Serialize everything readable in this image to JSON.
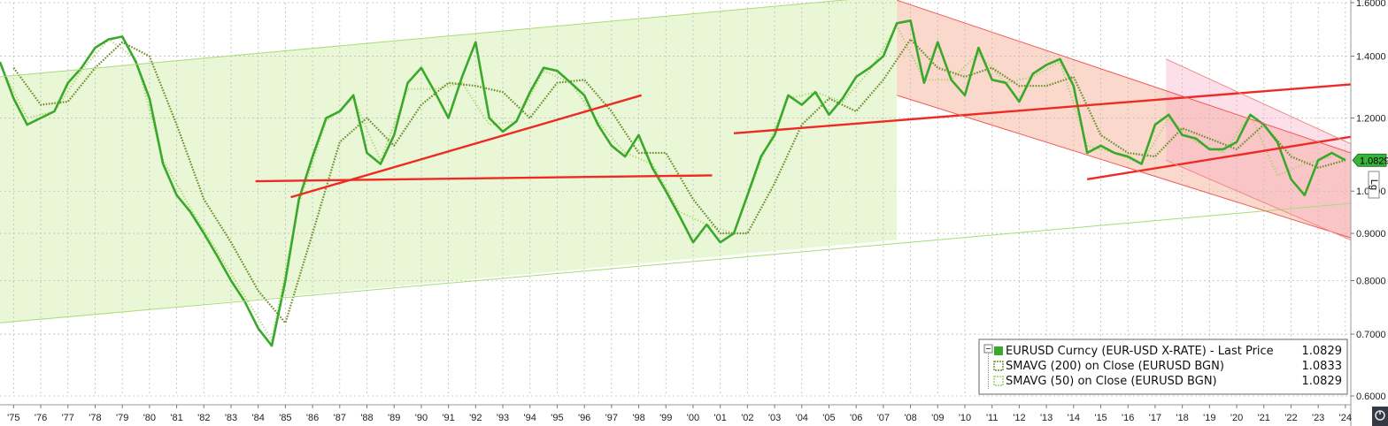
{
  "chart_data": {
    "type": "line",
    "title": "",
    "xlabel": "",
    "ylabel": "",
    "yscale": "log",
    "ylim": [
      0.6,
      1.6
    ],
    "xlim": [
      1975.0,
      2024.7
    ],
    "grid": true,
    "legend_position": "bottom-right",
    "x_tick_labels": [
      "'75",
      "'76",
      "'77",
      "'78",
      "'79",
      "'80",
      "'81",
      "'82",
      "'83",
      "'84",
      "'85",
      "'86",
      "'87",
      "'88",
      "'89",
      "'90",
      "'91",
      "'92",
      "'93",
      "'94",
      "'95",
      "'96",
      "'97",
      "'98",
      "'99",
      "'00",
      "'01",
      "'02",
      "'03",
      "'04",
      "'05",
      "'06",
      "'07",
      "'08",
      "'09",
      "'10",
      "'11",
      "'12",
      "'13",
      "'14",
      "'15",
      "'16",
      "'17",
      "'18",
      "'19",
      "'20",
      "'21",
      "'22",
      "'23",
      "'24"
    ],
    "y_ticks": [
      0.6,
      0.7,
      0.8,
      0.9,
      1.0,
      1.2,
      1.4,
      1.6
    ],
    "y_tick_labels": [
      "0.6000",
      "0.7000",
      "0.8000",
      "0.9000",
      "1.0000",
      "1.2000",
      "1.4000",
      "1.6000"
    ],
    "last_price_label": "1.0829",
    "series": [
      {
        "name": "EURUSD Curncy (EUR-USD X-RATE) - Last Price",
        "value_label": "1.0829",
        "color": "#3aa82a",
        "x": [
          1975.0,
          1975.5,
          1976.0,
          1976.5,
          1977.0,
          1977.5,
          1978.0,
          1978.5,
          1979.0,
          1979.5,
          1980.0,
          1980.5,
          1981.0,
          1981.5,
          1982.0,
          1982.5,
          1983.0,
          1983.5,
          1984.0,
          1984.5,
          1985.0,
          1985.5,
          1986.0,
          1986.5,
          1987.0,
          1987.5,
          1988.0,
          1988.5,
          1989.0,
          1989.5,
          1990.0,
          1990.5,
          1991.0,
          1991.5,
          1992.0,
          1992.5,
          1993.0,
          1993.5,
          1994.0,
          1994.5,
          1995.0,
          1995.5,
          1996.0,
          1996.5,
          1997.0,
          1997.5,
          1998.0,
          1998.5,
          1999.0,
          1999.5,
          2000.0,
          2000.5,
          2001.0,
          2001.5,
          2002.0,
          2002.5,
          2003.0,
          2003.5,
          2004.0,
          2004.5,
          2005.0,
          2005.5,
          2006.0,
          2006.5,
          2007.0,
          2007.5,
          2008.0,
          2008.5,
          2009.0,
          2009.5,
          2010.0,
          2010.5,
          2011.0,
          2011.5,
          2012.0,
          2012.5,
          2013.0,
          2013.5,
          2014.0,
          2014.5,
          2015.0,
          2015.5,
          2016.0,
          2016.5,
          2017.0,
          2017.5,
          2018.0,
          2018.5,
          2019.0,
          2019.5,
          2020.0,
          2020.5,
          2021.0,
          2021.5,
          2022.0,
          2022.5,
          2023.0,
          2023.5,
          2024.0,
          2024.5
        ],
        "y": [
          1.38,
          1.26,
          1.18,
          1.2,
          1.22,
          1.31,
          1.36,
          1.43,
          1.46,
          1.47,
          1.38,
          1.26,
          1.07,
          0.99,
          0.95,
          0.9,
          0.85,
          0.8,
          0.76,
          0.71,
          0.68,
          0.8,
          0.98,
          1.09,
          1.2,
          1.22,
          1.27,
          1.1,
          1.07,
          1.15,
          1.31,
          1.36,
          1.28,
          1.2,
          1.33,
          1.45,
          1.2,
          1.16,
          1.19,
          1.28,
          1.36,
          1.35,
          1.31,
          1.27,
          1.18,
          1.12,
          1.09,
          1.15,
          1.06,
          1.0,
          0.94,
          0.88,
          0.92,
          0.88,
          0.9,
          0.99,
          1.09,
          1.15,
          1.27,
          1.24,
          1.28,
          1.21,
          1.26,
          1.33,
          1.36,
          1.4,
          1.52,
          1.53,
          1.31,
          1.45,
          1.32,
          1.27,
          1.43,
          1.32,
          1.31,
          1.25,
          1.34,
          1.37,
          1.39,
          1.3,
          1.1,
          1.12,
          1.1,
          1.09,
          1.07,
          1.18,
          1.21,
          1.15,
          1.14,
          1.11,
          1.11,
          1.13,
          1.21,
          1.18,
          1.13,
          1.03,
          0.99,
          1.08,
          1.1,
          1.08
        ]
      },
      {
        "name": "SMAVG (200)  on Close (EURUSD BGN)",
        "value_label": "1.0833",
        "color": "#6a8f2a",
        "x": [
          1975.5,
          1976.5,
          1977.5,
          1978.5,
          1979.5,
          1980.5,
          1981.5,
          1982.5,
          1983.5,
          1984.5,
          1985.5,
          1986.5,
          1987.5,
          1988.5,
          1989.5,
          1990.5,
          1991.5,
          1992.5,
          1993.5,
          1994.5,
          1995.5,
          1996.5,
          1997.5,
          1998.5,
          1999.5,
          2000.5,
          2001.5,
          2002.5,
          2003.5,
          2004.5,
          2005.5,
          2006.5,
          2007.5,
          2008.5,
          2009.5,
          2010.5,
          2011.5,
          2012.5,
          2013.5,
          2014.5,
          2015.5,
          2016.5,
          2017.5,
          2018.5,
          2019.5,
          2020.5,
          2021.5,
          2022.5,
          2023.5,
          2024.5
        ],
        "y": [
          1.36,
          1.24,
          1.25,
          1.36,
          1.45,
          1.4,
          1.18,
          0.98,
          0.88,
          0.78,
          0.72,
          0.9,
          1.13,
          1.2,
          1.12,
          1.24,
          1.31,
          1.3,
          1.28,
          1.2,
          1.31,
          1.32,
          1.22,
          1.1,
          1.1,
          0.98,
          0.9,
          0.9,
          1.02,
          1.18,
          1.26,
          1.22,
          1.32,
          1.46,
          1.36,
          1.33,
          1.36,
          1.3,
          1.3,
          1.33,
          1.15,
          1.1,
          1.09,
          1.17,
          1.14,
          1.11,
          1.18,
          1.09,
          1.06,
          1.08
        ]
      },
      {
        "name": "SMAVG (50)  on Close (EURUSD BGN)",
        "value_label": "1.0829",
        "color": "#9ed05a",
        "x": [
          1975.0,
          1976.0,
          1977.0,
          1978.0,
          1979.0,
          1980.0,
          1981.0,
          1982.0,
          1983.0,
          1984.0,
          1985.0,
          1986.0,
          1987.0,
          1988.0,
          1989.0,
          1990.0,
          1991.0,
          1992.0,
          1993.0,
          1994.0,
          1995.0,
          1996.0,
          1997.0,
          1998.0,
          1999.0,
          2000.0,
          2001.0,
          2002.0,
          2003.0,
          2004.0,
          2005.0,
          2006.0,
          2007.0,
          2008.0,
          2009.0,
          2010.0,
          2011.0,
          2012.0,
          2013.0,
          2014.0,
          2015.0,
          2016.0,
          2017.0,
          2018.0,
          2019.0,
          2020.0,
          2021.0,
          2022.0,
          2023.0,
          2024.0
        ],
        "y": [
          1.37,
          1.2,
          1.22,
          1.35,
          1.46,
          1.39,
          1.08,
          0.96,
          0.86,
          0.77,
          0.69,
          0.97,
          1.19,
          1.26,
          1.08,
          1.29,
          1.29,
          1.31,
          1.18,
          1.19,
          1.35,
          1.31,
          1.19,
          1.1,
          1.07,
          0.95,
          0.92,
          0.9,
          1.08,
          1.26,
          1.28,
          1.25,
          1.35,
          1.51,
          1.32,
          1.32,
          1.41,
          1.31,
          1.33,
          1.38,
          1.12,
          1.1,
          1.07,
          1.2,
          1.13,
          1.1,
          1.21,
          1.04,
          1.07,
          1.09
        ]
      }
    ],
    "trendlines": [
      {
        "kind": "channel-upper",
        "color": "#a7dc78",
        "x": [
          1975.0,
          2008.0
        ],
        "y": [
          1.33,
          1.63
        ]
      },
      {
        "kind": "channel-lower",
        "color": "#a7dc78",
        "x": [
          1975.0,
          2024.7
        ],
        "y": [
          0.72,
          0.97
        ]
      },
      {
        "kind": "line",
        "color": "#ee2a24",
        "x": [
          1984.4,
          2001.2
        ],
        "y": [
          1.025,
          1.04
        ]
      },
      {
        "kind": "line",
        "color": "#ee2a24",
        "x": [
          1985.7,
          1998.6
        ],
        "y": [
          0.985,
          1.27
        ]
      },
      {
        "kind": "line",
        "color": "#ee2a24",
        "x": [
          2002.0,
          2024.7
        ],
        "y": [
          1.155,
          1.305
        ]
      },
      {
        "kind": "line",
        "color": "#ee2a24",
        "x": [
          2015.0,
          2024.7
        ],
        "y": [
          1.03,
          1.145
        ]
      },
      {
        "kind": "channel-upper",
        "color": "#ee5a5a",
        "x": [
          2008.0,
          2024.7
        ],
        "y": [
          1.61,
          1.1
        ]
      },
      {
        "kind": "channel-lower",
        "color": "#ee5a5a",
        "x": [
          2008.0,
          2024.7
        ],
        "y": [
          1.27,
          0.89
        ]
      },
      {
        "kind": "channel-upper",
        "color": "#f08a8a",
        "x": [
          2017.9,
          2024.7
        ],
        "y": [
          1.39,
          1.125
        ]
      },
      {
        "kind": "channel-lower",
        "color": "#f08a8a",
        "x": [
          2017.9,
          2024.7
        ],
        "y": [
          1.08,
          0.885
        ]
      }
    ]
  }
}
